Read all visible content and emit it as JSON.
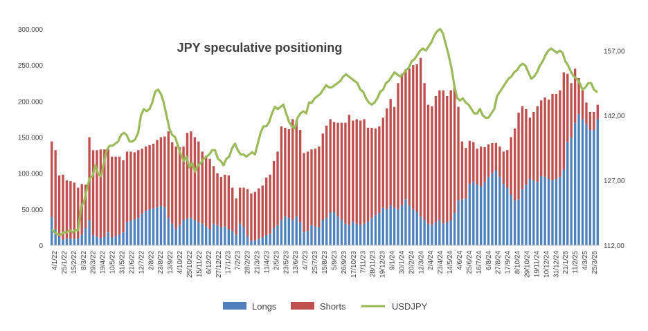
{
  "chart_data": {
    "type": "bar",
    "title": "JPY speculative positioning",
    "stacked": true,
    "left_axis": {
      "min": 0,
      "max": 300000,
      "step": 50000,
      "tick_labels": [
        "0",
        "50.000",
        "100.000",
        "150.000",
        "200.000",
        "250.000",
        "300.000"
      ]
    },
    "right_axis": {
      "min": 112,
      "max": 162,
      "tick_values": [
        112,
        127,
        142,
        157
      ],
      "tick_labels": [
        "112,00",
        "127,00",
        "142,00",
        "157,00"
      ]
    },
    "x_tick_labels": [
      "4/1/22",
      "25/1/22",
      "15/2/22",
      "8/3/22",
      "29/3/22",
      "19/4/22",
      "10/5/22",
      "31/5/22",
      "21/6/22",
      "12/7/22",
      "2/8/22",
      "23/8/22",
      "13/9/22",
      "4/10/22",
      "25/10/22",
      "15/11/22",
      "6/12/22",
      "27/12/22",
      "17/1/23",
      "7/2/23",
      "28/2/23",
      "21/3/23",
      "11/4/23",
      "2/5/23",
      "23/5/23",
      "13/6/23",
      "4/7/23",
      "25/7/23",
      "15/8/23",
      "5/9/23",
      "26/9/23",
      "17/10/23",
      "7/11/23",
      "28/11/23",
      "19/12/23",
      "9/1/24",
      "30/1/24",
      "20/2/24",
      "12/3/24",
      "2/4/24",
      "23/4/24",
      "14/5/24",
      "4/6/24",
      "25/6/24",
      "16/7/24",
      "6/8/24",
      "27/8/24",
      "17/9/24",
      "8/10/24",
      "29/10/24",
      "19/11/24",
      "10/12/24",
      "31/12/24",
      "21/1/25",
      "11/2/25",
      "4/3/25",
      "25/3/25"
    ],
    "legend": {
      "placement": "bottom",
      "items": [
        {
          "name": "Longs",
          "color": "#4F81BD"
        },
        {
          "name": "Shorts",
          "color": "#C0504D"
        },
        {
          "name": "USDJPY",
          "color": "#9BBB59"
        }
      ]
    },
    "series": [
      {
        "name": "Longs",
        "color": "#4F81BD",
        "values": [
          39000,
          22000,
          12000,
          8000,
          10000,
          9000,
          9000,
          10000,
          15000,
          24000,
          35000,
          14000,
          12000,
          10000,
          12000,
          18000,
          11000,
          13000,
          15000,
          18000,
          32000,
          34000,
          36000,
          38000,
          44000,
          48000,
          50000,
          51000,
          53000,
          55000,
          53000,
          38000,
          30000,
          23000,
          28000,
          35000,
          37000,
          38000,
          35000,
          32000,
          30000,
          26000,
          22000,
          30000,
          28000,
          25000,
          26000,
          22000,
          20000,
          15000,
          30000,
          25000,
          12000,
          6000,
          7000,
          9000,
          11000,
          14000,
          16000,
          24000,
          28000,
          35000,
          40000,
          38000,
          35000,
          40000,
          32000,
          18000,
          20000,
          28000,
          26000,
          25000,
          35000,
          38000,
          45000,
          46000,
          40000,
          35000,
          30000,
          28000,
          33000,
          30000,
          28000,
          30000,
          33000,
          38000,
          42000,
          45000,
          52000,
          50000,
          55000,
          52000,
          50000,
          56000,
          64000,
          55000,
          50000,
          46000,
          40000,
          35000,
          30000,
          28000,
          32000,
          35000,
          30000,
          32000,
          35000,
          45000,
          62000,
          64000,
          65000,
          85000,
          88000,
          84000,
          82000,
          88000,
          95000,
          100000,
          104000,
          95000,
          85000,
          80000,
          70000,
          62000,
          64000,
          78000,
          84000,
          92000,
          90000,
          88000,
          96000,
          95000,
          92000,
          90000,
          92000,
          95000,
          105000,
          143000,
          150000,
          170000,
          182000,
          175000,
          168000,
          160000,
          160000,
          175000
        ]
      },
      {
        "name": "Shorts",
        "color": "#C0504D",
        "values": [
          105000,
          110000,
          85000,
          90000,
          80000,
          80000,
          78000,
          70000,
          70000,
          60000,
          115000,
          118000,
          120000,
          123000,
          121000,
          115000,
          112000,
          110000,
          108000,
          100000,
          98000,
          96000,
          93000,
          94000,
          90000,
          89000,
          89000,
          90000,
          93000,
          95000,
          98000,
          120000,
          113000,
          114000,
          108000,
          102000,
          119000,
          120000,
          115000,
          112000,
          100000,
          98000,
          98000,
          80000,
          72000,
          70000,
          72000,
          75000,
          60000,
          50000,
          50000,
          55000,
          66000,
          66000,
          67000,
          70000,
          72000,
          80000,
          82000,
          93000,
          102000,
          130000,
          123000,
          123000,
          140000,
          133000,
          128000,
          110000,
          110000,
          105000,
          108000,
          112000,
          120000,
          128000,
          130000,
          125000,
          130000,
          135000,
          140000,
          153000,
          140000,
          145000,
          145000,
          145000,
          130000,
          125000,
          120000,
          120000,
          125000,
          140000,
          148000,
          140000,
          175000,
          182000,
          180000,
          190000,
          200000,
          205000,
          220000,
          190000,
          165000,
          165000,
          175000,
          180000,
          185000,
          175000,
          180000,
          175000,
          130000,
          80000,
          70000,
          60000,
          55000,
          50000,
          55000,
          48000,
          45000,
          42000,
          38000,
          42000,
          45000,
          52000,
          80000,
          100000,
          120000,
          115000,
          105000,
          85000,
          95000,
          105000,
          105000,
          110000,
          110000,
          120000,
          118000,
          120000,
          135000,
          95000,
          75000,
          75000,
          50000,
          40000,
          30000,
          25000,
          25000,
          20000
        ]
      },
      {
        "name": "USDJPY",
        "color": "#9BBB59",
        "axis": "right",
        "values": [
          115.5,
          114.8,
          114.5,
          114.5,
          115.0,
          115.0,
          115.5,
          115.0,
          115.5,
          115.5,
          121.0,
          122.0,
          125.0,
          127.5,
          128.0,
          130.5,
          128.5,
          128.0,
          131.0,
          134.0,
          135.0,
          135.0,
          135.5,
          136.0,
          137.5,
          138.0,
          137.5,
          136.0,
          136.0,
          136.5,
          138.0,
          142.0,
          143.5,
          143.0,
          143.5,
          145.0,
          147.5,
          148.0,
          147.0,
          145.0,
          142.0,
          139.0,
          137.5,
          137.0,
          135.0,
          133.0,
          131.5,
          132.5,
          130.0,
          131.0,
          129.0,
          130.5,
          131.0,
          132.0,
          132.5,
          133.0,
          134.0,
          134.0,
          132.0,
          131.5,
          130.5,
          132.0,
          132.5,
          134.5,
          135.5,
          134.0,
          133.0,
          133.0,
          132.5,
          133.0,
          133.5,
          133.0,
          135.5,
          138.0,
          139.5,
          139.5,
          140.5,
          142.5,
          144.0,
          143.5,
          144.0,
          144.5,
          142.5,
          140.5,
          139.5,
          139.0,
          141.5,
          142.5,
          143.0,
          142.5,
          145.0,
          145.0,
          146.0,
          146.5,
          147.0,
          148.0,
          149.0,
          148.5,
          148.5,
          149.0,
          149.5,
          150.0,
          151.0,
          151.5,
          151.0,
          150.5,
          150.0,
          149.5,
          148.0,
          147.5,
          146.0,
          145.0,
          144.5,
          145.0,
          146.0,
          147.5,
          148.0,
          149.5,
          150.0,
          151.0,
          152.0,
          151.5,
          151.0,
          151.5,
          152.5,
          153.0,
          154.5,
          155.0,
          156.0,
          157.0,
          157.5,
          157.0,
          158.0,
          159.0,
          160.5,
          161.5,
          162.0,
          161.0,
          158.5,
          156.0,
          153.0,
          149.0,
          146.0,
          145.5,
          146.0,
          145.0,
          144.5,
          143.5,
          142.5,
          142.5,
          143.5,
          142.0,
          141.5,
          141.5,
          142.5,
          143.5,
          146.5,
          147.5,
          148.5,
          149.5,
          150.5,
          151.0,
          152.0,
          152.5,
          153.5,
          154.0,
          153.5,
          152.0,
          150.5,
          151.0,
          152.0,
          153.5,
          154.5,
          156.0,
          157.0,
          157.5,
          157.0,
          156.5,
          157.0,
          156.5,
          154.5,
          153.5,
          152.0,
          151.0,
          150.5,
          149.5,
          148.0,
          148.5,
          149.5,
          149.5,
          148.0,
          147.5
        ]
      }
    ]
  }
}
